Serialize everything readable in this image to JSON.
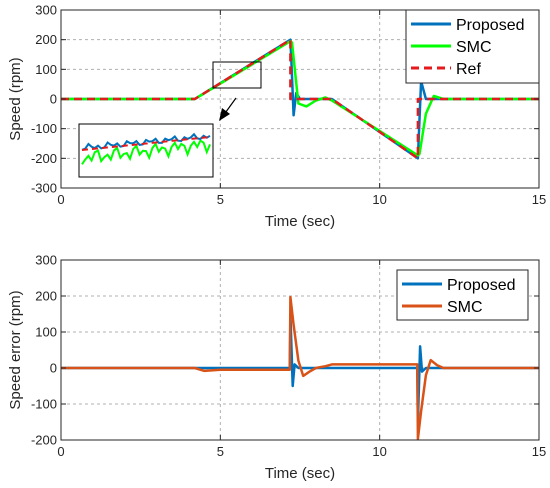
{
  "chart_data": [
    {
      "type": "line",
      "xlabel": "Time (sec)",
      "ylabel": "Speed (rpm)",
      "xlim": [
        0,
        15
      ],
      "ylim": [
        -300,
        300
      ],
      "xticks": [
        0,
        5,
        10,
        15
      ],
      "yticks": [
        -300,
        -200,
        -100,
        0,
        100,
        200,
        300
      ],
      "grid": true,
      "legend_position": "top-right",
      "series": [
        {
          "name": "Proposed",
          "color": "#0072BD",
          "style": "solid",
          "x": [
            0,
            4.2,
            7.2,
            7.22,
            7.3,
            7.38,
            7.5,
            8.0,
            8.5,
            11.2,
            11.22,
            11.3,
            11.45,
            11.7,
            12.0,
            15
          ],
          "y": [
            0,
            0,
            200,
            150,
            -55,
            20,
            0,
            0,
            0,
            -200,
            -150,
            60,
            0,
            0,
            0,
            0
          ]
        },
        {
          "name": "SMC",
          "color": "#00FF00",
          "style": "solid",
          "x": [
            0,
            4.2,
            7.2,
            7.25,
            7.45,
            7.7,
            8.0,
            8.3,
            8.5,
            11.2,
            11.25,
            11.45,
            11.7,
            12.0,
            15
          ],
          "y": [
            0,
            0,
            195,
            190,
            -15,
            -25,
            -5,
            5,
            -5,
            -190,
            -185,
            -50,
            10,
            0,
            0
          ]
        },
        {
          "name": "Ref",
          "color": "#E41A1C",
          "style": "dashed",
          "x": [
            0,
            4.2,
            7.2,
            7.2,
            8.5,
            11.2,
            11.2,
            15
          ],
          "y": [
            0,
            0,
            200,
            0,
            0,
            -200,
            0,
            0
          ]
        }
      ]
    },
    {
      "type": "line",
      "xlabel": "Time (sec)",
      "ylabel": "Speed error (rpm)",
      "xlim": [
        0,
        15
      ],
      "ylim": [
        -200,
        300
      ],
      "xticks": [
        0,
        5,
        10,
        15
      ],
      "yticks": [
        -200,
        -100,
        0,
        100,
        200,
        300
      ],
      "grid": true,
      "legend_position": "top-right",
      "series": [
        {
          "name": "Proposed",
          "color": "#0072BD",
          "style": "solid",
          "x": [
            0,
            7.18,
            7.2,
            7.27,
            7.33,
            7.45,
            11.18,
            11.2,
            11.27,
            11.33,
            11.45,
            15
          ],
          "y": [
            0,
            0,
            150,
            -50,
            10,
            0,
            0,
            -150,
            60,
            -10,
            0,
            0
          ]
        },
        {
          "name": "SMC",
          "color": "#D95319",
          "style": "solid",
          "x": [
            0,
            4.2,
            4.5,
            5.0,
            7.18,
            7.2,
            7.3,
            7.45,
            7.6,
            7.8,
            8.0,
            8.3,
            8.5,
            11.18,
            11.2,
            11.3,
            11.45,
            11.6,
            11.8,
            12.0,
            12.2,
            15
          ],
          "y": [
            0,
            0,
            -8,
            -5,
            -5,
            197,
            120,
            20,
            -22,
            -10,
            0,
            5,
            10,
            10,
            -197,
            -120,
            -20,
            22,
            8,
            0,
            0,
            0
          ]
        }
      ]
    }
  ]
}
